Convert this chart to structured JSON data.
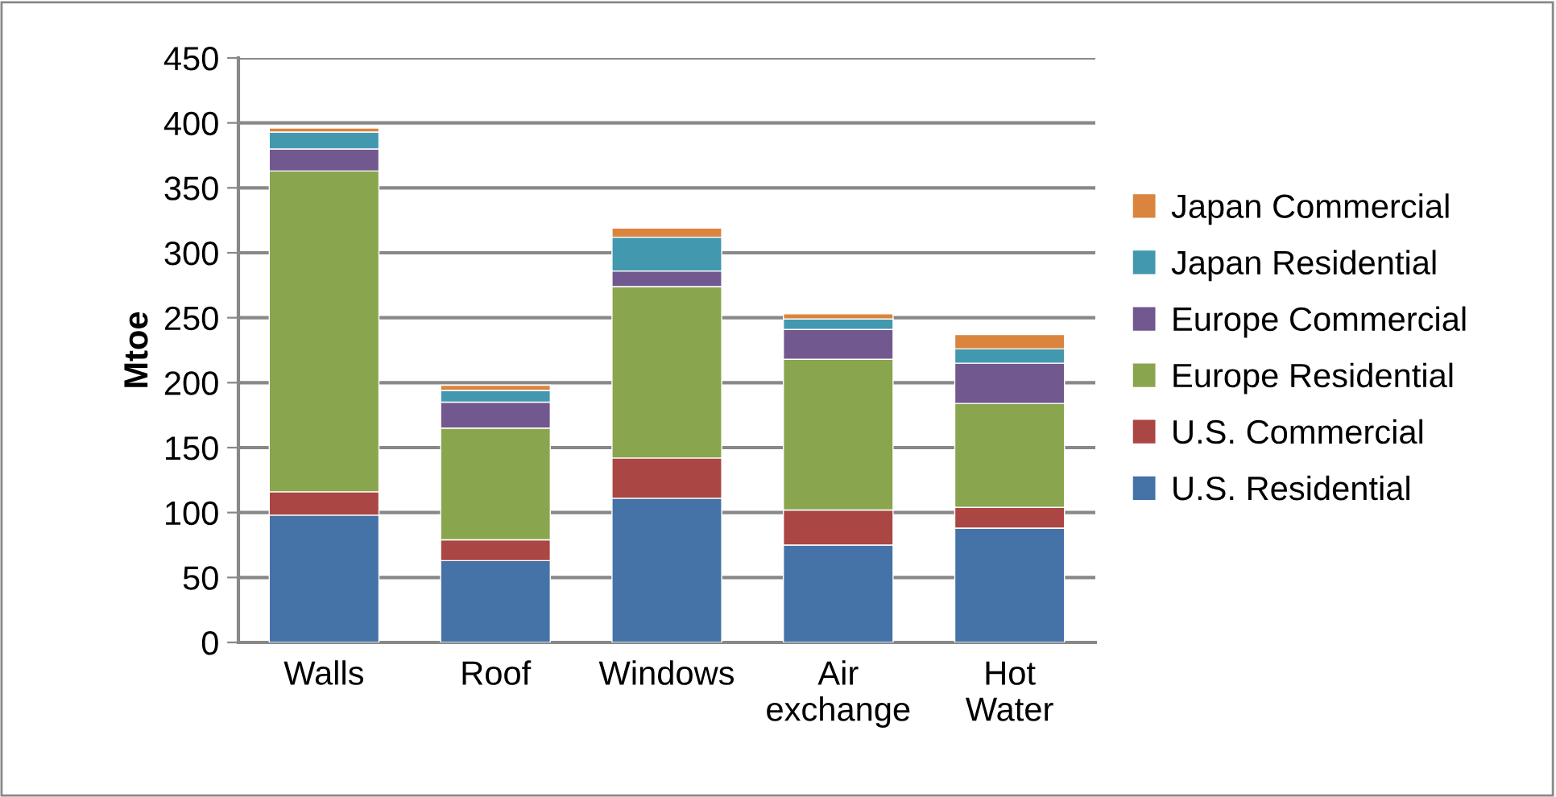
{
  "chart_data": {
    "type": "bar",
    "stacked": true,
    "ylabel": "Mtoe",
    "categories": [
      "Walls",
      "Roof",
      "Windows",
      "Air\nexchange",
      "Hot\nWater"
    ],
    "series": [
      {
        "name": "U.S. Residential",
        "color": "#4572a7",
        "values": [
          98,
          63,
          111,
          75,
          88
        ]
      },
      {
        "name": "U.S. Commercial",
        "color": "#aa4643",
        "values": [
          18,
          16,
          31,
          27,
          16
        ]
      },
      {
        "name": "Europe Residential",
        "color": "#89a54e",
        "values": [
          247,
          86,
          132,
          116,
          80
        ]
      },
      {
        "name": "Europe Commercial",
        "color": "#71588f",
        "values": [
          17,
          20,
          12,
          23,
          31
        ]
      },
      {
        "name": "Japan Residential",
        "color": "#4198af",
        "values": [
          13,
          9,
          26,
          8,
          11
        ]
      },
      {
        "name": "Japan Commercial",
        "color": "#db843d",
        "values": [
          3,
          4,
          7,
          4,
          11
        ]
      }
    ],
    "ylim": [
      0,
      450
    ],
    "yticks": [
      0,
      50,
      100,
      150,
      200,
      250,
      300,
      350,
      400,
      450
    ],
    "grid": "y",
    "legend": "right"
  }
}
